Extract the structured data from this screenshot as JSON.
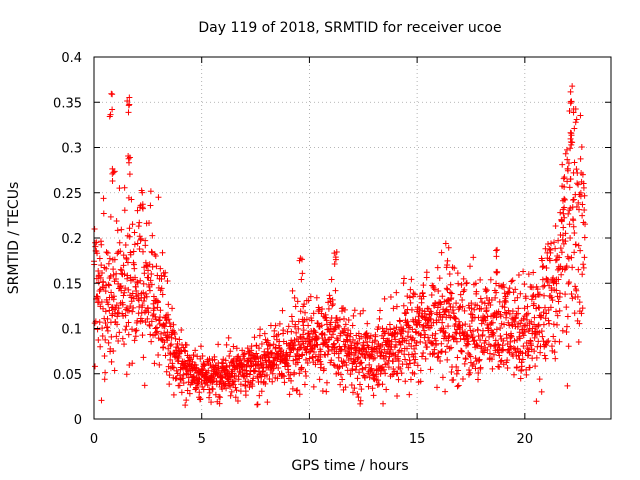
{
  "chart_data": {
    "type": "scatter",
    "title": "Day 119 of 2018, SRMTID for receiver ucoe",
    "xlabel": "GPS time / hours",
    "ylabel": "SRMTID / TECUs",
    "xlim": [
      0,
      24
    ],
    "ylim": [
      0,
      0.4
    ],
    "grid": true,
    "marker": "+",
    "marker_color": "#ff0000",
    "x_ticks": [
      0,
      5,
      10,
      15,
      20
    ],
    "x_tick_labels": [
      "0",
      "5",
      "10",
      "15",
      "20"
    ],
    "y_ticks": [
      0,
      0.05,
      0.1,
      0.15,
      0.2,
      0.25,
      0.3,
      0.35,
      0.4
    ],
    "y_tick_labels": [
      "0",
      "0.05",
      "0.1",
      "0.15",
      "0.2",
      "0.25",
      "0.3",
      "0.35",
      "0.4"
    ],
    "series": [
      {
        "name": "SRMTID",
        "x_range": [
          0,
          22.8
        ],
        "trend": [
          {
            "x": 0.0,
            "y": 0.14
          },
          {
            "x": 0.5,
            "y": 0.13
          },
          {
            "x": 1.0,
            "y": 0.13
          },
          {
            "x": 1.5,
            "y": 0.15
          },
          {
            "x": 2.0,
            "y": 0.15
          },
          {
            "x": 2.5,
            "y": 0.15
          },
          {
            "x": 3.0,
            "y": 0.13
          },
          {
            "x": 3.5,
            "y": 0.09
          },
          {
            "x": 4.0,
            "y": 0.06
          },
          {
            "x": 5.0,
            "y": 0.045
          },
          {
            "x": 6.0,
            "y": 0.05
          },
          {
            "x": 7.0,
            "y": 0.055
          },
          {
            "x": 8.0,
            "y": 0.06
          },
          {
            "x": 9.0,
            "y": 0.075
          },
          {
            "x": 10.0,
            "y": 0.085
          },
          {
            "x": 11.0,
            "y": 0.09
          },
          {
            "x": 12.0,
            "y": 0.07
          },
          {
            "x": 13.0,
            "y": 0.07
          },
          {
            "x": 14.0,
            "y": 0.08
          },
          {
            "x": 15.0,
            "y": 0.1
          },
          {
            "x": 16.0,
            "y": 0.11
          },
          {
            "x": 17.0,
            "y": 0.1
          },
          {
            "x": 18.0,
            "y": 0.1
          },
          {
            "x": 19.0,
            "y": 0.1
          },
          {
            "x": 20.0,
            "y": 0.1
          },
          {
            "x": 21.0,
            "y": 0.12
          },
          {
            "x": 21.5,
            "y": 0.16
          },
          {
            "x": 22.0,
            "y": 0.2
          },
          {
            "x": 22.5,
            "y": 0.21
          },
          {
            "x": 22.8,
            "y": 0.2
          }
        ],
        "peaks": [
          {
            "x": 0.8,
            "y": 0.36
          },
          {
            "x": 1.6,
            "y": 0.365
          },
          {
            "x": 1.6,
            "y": 0.295
          },
          {
            "x": 0.9,
            "y": 0.285
          },
          {
            "x": 2.2,
            "y": 0.255
          },
          {
            "x": 11.2,
            "y": 0.19
          },
          {
            "x": 9.6,
            "y": 0.18
          },
          {
            "x": 16.4,
            "y": 0.195
          },
          {
            "x": 18.7,
            "y": 0.19
          },
          {
            "x": 22.2,
            "y": 0.37
          },
          {
            "x": 22.3,
            "y": 0.35
          },
          {
            "x": 22.1,
            "y": 0.32
          },
          {
            "x": 22.0,
            "y": 0.3
          },
          {
            "x": 21.8,
            "y": 0.26
          }
        ]
      }
    ]
  }
}
